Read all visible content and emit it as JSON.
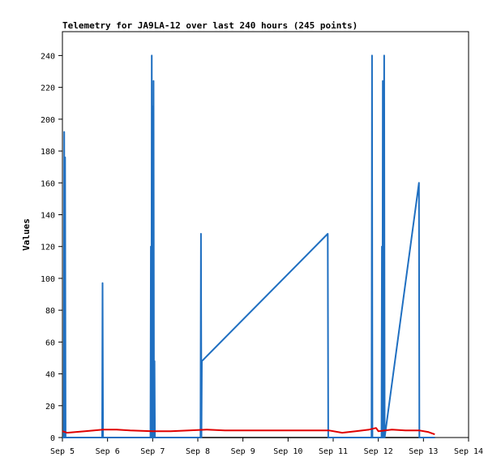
{
  "chart_data": {
    "type": "line",
    "title": "Telemetry for JA9LA-12 over last 240 hours (245 points)",
    "xlabel": "",
    "ylabel": "Values",
    "x_unit": "days",
    "xlim": [
      5,
      14
    ],
    "ylim": [
      0,
      255
    ],
    "x_ticks": [
      {
        "value": 5,
        "label": "Sep 5"
      },
      {
        "value": 6,
        "label": "Sep 6"
      },
      {
        "value": 7,
        "label": "Sep 7"
      },
      {
        "value": 8,
        "label": "Sep 8"
      },
      {
        "value": 9,
        "label": "Sep 9"
      },
      {
        "value": 10,
        "label": "Sep 10"
      },
      {
        "value": 11,
        "label": "Sep 11"
      },
      {
        "value": 12,
        "label": "Sep 12"
      },
      {
        "value": 13,
        "label": "Sep 13"
      },
      {
        "value": 14,
        "label": "Sep 14"
      }
    ],
    "y_ticks": [
      0,
      20,
      40,
      60,
      80,
      100,
      120,
      140,
      160,
      180,
      200,
      220,
      240
    ],
    "grid": false,
    "legend": "none",
    "series": [
      {
        "color": "#000000",
        "points": [
          [
            5.0,
            0
          ],
          [
            13.25,
            0
          ]
        ]
      },
      {
        "color": "#1f6fc1",
        "points": [
          [
            5.0,
            0
          ],
          [
            5.03,
            0
          ],
          [
            5.04,
            192
          ],
          [
            5.05,
            0
          ],
          [
            5.06,
            176
          ],
          [
            5.07,
            0
          ],
          [
            5.09,
            0
          ],
          [
            5.88,
            0
          ],
          [
            5.89,
            97
          ],
          [
            5.9,
            0
          ],
          [
            6.95,
            0
          ],
          [
            6.96,
            120
          ],
          [
            6.97,
            0
          ],
          [
            6.98,
            240
          ],
          [
            6.99,
            0
          ],
          [
            7.0,
            208
          ],
          [
            7.01,
            0
          ],
          [
            7.02,
            224
          ],
          [
            7.03,
            0
          ],
          [
            7.04,
            48
          ],
          [
            7.05,
            0
          ],
          [
            8.06,
            0
          ],
          [
            8.07,
            128
          ],
          [
            8.08,
            0
          ],
          [
            8.09,
            48
          ],
          [
            10.88,
            128
          ],
          [
            10.89,
            0
          ],
          [
            11.85,
            0
          ],
          [
            11.86,
            240
          ],
          [
            11.87,
            0
          ],
          [
            12.07,
            0
          ],
          [
            12.08,
            120
          ],
          [
            12.09,
            0
          ],
          [
            12.1,
            224
          ],
          [
            12.11,
            0
          ],
          [
            12.13,
            240
          ],
          [
            12.14,
            0
          ],
          [
            12.9,
            160
          ],
          [
            12.91,
            0
          ],
          [
            13.25,
            0
          ]
        ]
      },
      {
        "color": "#e00000",
        "points": [
          [
            5.0,
            4
          ],
          [
            5.1,
            3
          ],
          [
            5.5,
            4
          ],
          [
            5.9,
            5
          ],
          [
            6.2,
            5
          ],
          [
            6.5,
            4.5
          ],
          [
            7.0,
            4
          ],
          [
            7.4,
            4
          ],
          [
            7.8,
            4.5
          ],
          [
            8.2,
            5
          ],
          [
            8.6,
            4.5
          ],
          [
            9.0,
            4.5
          ],
          [
            10.0,
            4.5
          ],
          [
            10.9,
            4.5
          ],
          [
            11.2,
            3
          ],
          [
            11.5,
            4
          ],
          [
            11.8,
            5
          ],
          [
            11.95,
            6
          ],
          [
            12.0,
            4
          ],
          [
            12.3,
            5
          ],
          [
            12.6,
            4.5
          ],
          [
            12.9,
            4.5
          ],
          [
            13.1,
            3.5
          ],
          [
            13.25,
            2
          ]
        ]
      }
    ]
  }
}
